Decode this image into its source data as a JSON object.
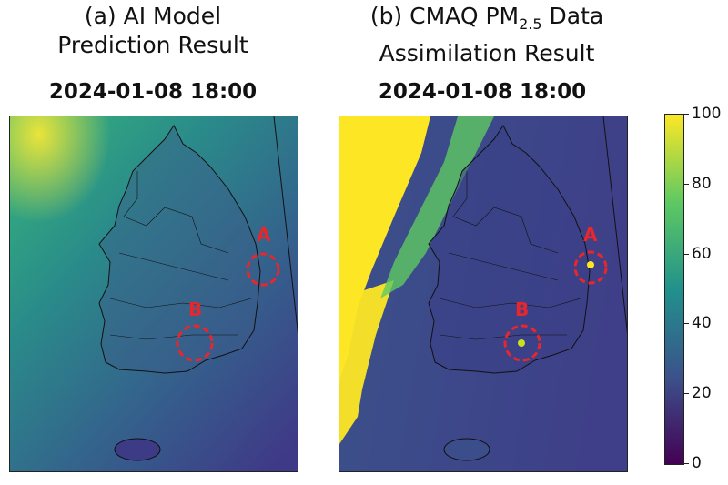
{
  "panels": [
    {
      "caption_prefix": "(a) AI Model",
      "caption_line2": "Prediction Result",
      "timestamp": "2024-01-08 18:00",
      "markers": [
        {
          "label": "A"
        },
        {
          "label": "B"
        }
      ]
    },
    {
      "caption_prefix": "(b) CMAQ PM",
      "caption_sub": "2.5",
      "caption_suffix": " Data",
      "caption_line2": "Assimilation Result",
      "timestamp": "2024-01-08 18:00",
      "markers": [
        {
          "label": "A"
        },
        {
          "label": "B"
        }
      ]
    }
  ],
  "colorbar": {
    "ticks": [
      "100",
      "80",
      "60",
      "40",
      "20",
      "0"
    ],
    "colormap": "viridis",
    "colors": [
      "#440154",
      "#3b528b",
      "#21918c",
      "#5ec962",
      "#fde725"
    ]
  },
  "chart_data": [
    {
      "type": "heatmap",
      "title": "2024-01-08 18:00",
      "colorbar_range": [
        0,
        100
      ],
      "annotations": [
        "A",
        "B"
      ]
    },
    {
      "type": "heatmap",
      "title": "2024-01-08 18:00",
      "colorbar_range": [
        0,
        100
      ],
      "annotations": [
        "A",
        "B"
      ]
    }
  ]
}
